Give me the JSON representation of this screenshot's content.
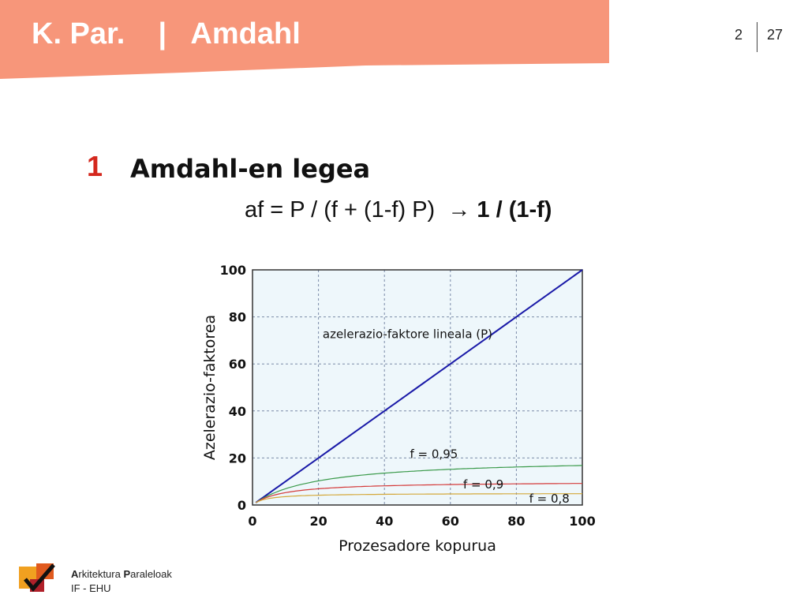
{
  "header": {
    "title": "K. Par.    |   Amdahl",
    "page_current": "2",
    "page_total": "27",
    "color": "#f7967a"
  },
  "section": {
    "number": "1",
    "title": "Amdahl-en legea",
    "formula": "af = P / (f + (1-f) P)  → ",
    "formula_limit": "1 / (1-f)"
  },
  "chart_data": {
    "type": "line",
    "xlabel": "Prozesadore kopurua",
    "ylabel": "Azelerazio-faktorea",
    "xlim": [
      0,
      100
    ],
    "ylim": [
      0,
      100
    ],
    "xticks": [
      "0",
      "20",
      "40",
      "60",
      "80",
      "100"
    ],
    "yticks": [
      "0",
      "20",
      "40",
      "60",
      "80",
      "100"
    ],
    "grid": true,
    "background": "#eef7fb",
    "series": [
      {
        "name": "azelerazio-faktore lineala (P)",
        "f": 1.0,
        "color": "#1a1aa8"
      },
      {
        "name": "f = 0,95",
        "f": 0.95,
        "color": "#3a9a4a"
      },
      {
        "name": "f = 0,9",
        "f": 0.9,
        "color": "#d43a3a"
      },
      {
        "name": "f = 0,8",
        "f": 0.8,
        "color": "#d4a83a"
      }
    ]
  },
  "footer": {
    "line1_initial_a": "A",
    "line1_rest_a": "rkitektura ",
    "line1_initial_p": "P",
    "line1_rest_p": "araleloak",
    "line2": "IF - EHU"
  }
}
